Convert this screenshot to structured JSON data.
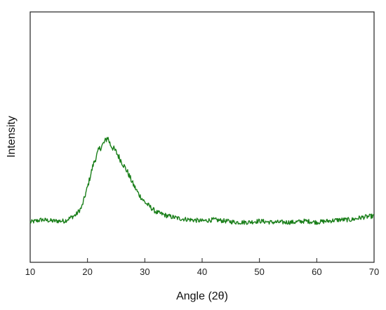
{
  "chart_data": {
    "type": "line",
    "title": "",
    "xlabel": "Angle (2θ)",
    "ylabel": "Intensity",
    "xlim": [
      10,
      70
    ],
    "ylim": [
      0,
      1
    ],
    "y_tick_labels_shown": false,
    "x_ticks": [
      10,
      20,
      30,
      40,
      50,
      60,
      70
    ],
    "x_tick_labels": [
      "10",
      "20",
      "30",
      "40",
      "50",
      "60",
      "70"
    ],
    "grid": false,
    "legend": "none",
    "series": [
      {
        "color": "#1a7f1a",
        "x": [
          10,
          12,
          14,
          16,
          18,
          19,
          20,
          21,
          22,
          23,
          23.5,
          24,
          25,
          26,
          27,
          28,
          29,
          30,
          31,
          32,
          34,
          36,
          38,
          40,
          42,
          44,
          46,
          48,
          50,
          52,
          54,
          56,
          58,
          60,
          62,
          64,
          66,
          68,
          70
        ],
        "y": [
          0.16,
          0.17,
          0.165,
          0.165,
          0.19,
          0.22,
          0.3,
          0.39,
          0.45,
          0.48,
          0.5,
          0.47,
          0.44,
          0.4,
          0.36,
          0.31,
          0.27,
          0.24,
          0.22,
          0.2,
          0.185,
          0.175,
          0.17,
          0.165,
          0.17,
          0.165,
          0.16,
          0.16,
          0.165,
          0.16,
          0.16,
          0.16,
          0.165,
          0.16,
          0.165,
          0.17,
          0.17,
          0.18,
          0.185
        ]
      }
    ]
  }
}
